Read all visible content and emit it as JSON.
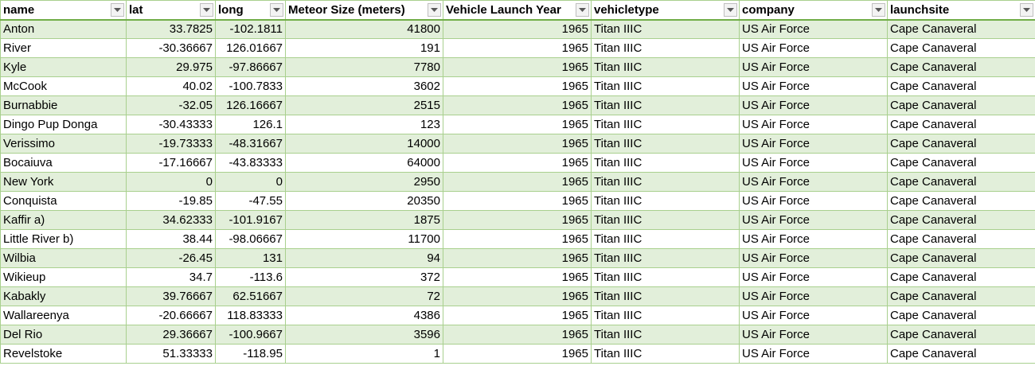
{
  "columns": [
    "name",
    "lat",
    "long",
    "Meteor Size (meters)",
    "Vehicle Launch Year",
    "vehicletype",
    "company",
    "launchsite"
  ],
  "numeric_columns": [
    1,
    2,
    3,
    4
  ],
  "filter_icon": "chevron-down-icon",
  "colors": {
    "band": "#e2efda",
    "grid": "#a9d08e",
    "header_rule": "#70ad47"
  },
  "rows": [
    [
      "Anton",
      "33.7825",
      "-102.1811",
      "41800",
      "1965",
      "Titan IIIC",
      "US Air Force",
      "Cape Canaveral"
    ],
    [
      "River",
      "-30.36667",
      "126.01667",
      "191",
      "1965",
      "Titan IIIC",
      "US Air Force",
      "Cape Canaveral"
    ],
    [
      "Kyle",
      "29.975",
      "-97.86667",
      "7780",
      "1965",
      "Titan IIIC",
      "US Air Force",
      "Cape Canaveral"
    ],
    [
      "McCook",
      "40.02",
      "-100.7833",
      "3602",
      "1965",
      "Titan IIIC",
      "US Air Force",
      "Cape Canaveral"
    ],
    [
      "Burnabbie",
      "-32.05",
      "126.16667",
      "2515",
      "1965",
      "Titan IIIC",
      "US Air Force",
      "Cape Canaveral"
    ],
    [
      "Dingo Pup Donga",
      "-30.43333",
      "126.1",
      "123",
      "1965",
      "Titan IIIC",
      "US Air Force",
      "Cape Canaveral"
    ],
    [
      "Verissimo",
      "-19.73333",
      "-48.31667",
      "14000",
      "1965",
      "Titan IIIC",
      "US Air Force",
      "Cape Canaveral"
    ],
    [
      "Bocaiuva",
      "-17.16667",
      "-43.83333",
      "64000",
      "1965",
      "Titan IIIC",
      "US Air Force",
      "Cape Canaveral"
    ],
    [
      "New York",
      "0",
      "0",
      "2950",
      "1965",
      "Titan IIIC",
      "US Air Force",
      "Cape Canaveral"
    ],
    [
      "Conquista",
      "-19.85",
      "-47.55",
      "20350",
      "1965",
      "Titan IIIC",
      "US Air Force",
      "Cape Canaveral"
    ],
    [
      "Kaffir a)",
      "34.62333",
      "-101.9167",
      "1875",
      "1965",
      "Titan IIIC",
      "US Air Force",
      "Cape Canaveral"
    ],
    [
      "Little River b)",
      "38.44",
      "-98.06667",
      "11700",
      "1965",
      "Titan IIIC",
      "US Air Force",
      "Cape Canaveral"
    ],
    [
      "Wilbia",
      "-26.45",
      "131",
      "94",
      "1965",
      "Titan IIIC",
      "US Air Force",
      "Cape Canaveral"
    ],
    [
      "Wikieup",
      "34.7",
      "-113.6",
      "372",
      "1965",
      "Titan IIIC",
      "US Air Force",
      "Cape Canaveral"
    ],
    [
      "Kabakly",
      "39.76667",
      "62.51667",
      "72",
      "1965",
      "Titan IIIC",
      "US Air Force",
      "Cape Canaveral"
    ],
    [
      "Wallareenya",
      "-20.66667",
      "118.83333",
      "4386",
      "1965",
      "Titan IIIC",
      "US Air Force",
      "Cape Canaveral"
    ],
    [
      "Del Rio",
      "29.36667",
      "-100.9667",
      "3596",
      "1965",
      "Titan IIIC",
      "US Air Force",
      "Cape Canaveral"
    ],
    [
      "Revelstoke",
      "51.33333",
      "-118.95",
      "1",
      "1965",
      "Titan IIIC",
      "US Air Force",
      "Cape Canaveral"
    ]
  ]
}
